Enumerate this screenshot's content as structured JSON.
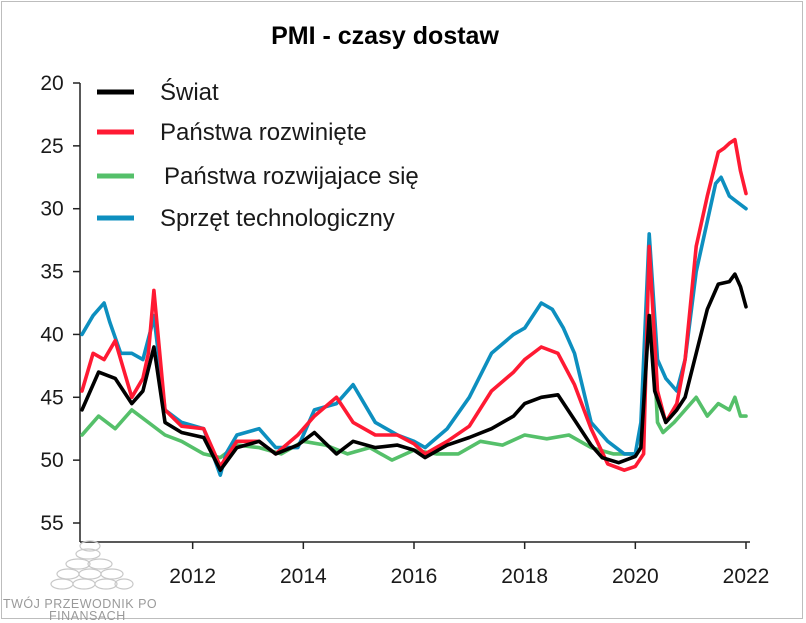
{
  "chart_data": {
    "type": "line",
    "title": "PMI - czasy dostaw",
    "xlabel": "",
    "ylabel": "",
    "x_ticks": [
      "2012",
      "2014",
      "2016",
      "2018",
      "2020",
      "2022"
    ],
    "y_ticks": [
      "20",
      "25",
      "30",
      "35",
      "40",
      "45",
      "50",
      "55"
    ],
    "ylim": [
      20,
      55
    ],
    "y_inverted": true,
    "xlim": [
      2010.0,
      2022.0
    ],
    "grid": false,
    "legend_position": "top-left",
    "series": [
      {
        "name": "Świat",
        "color": "#000000",
        "x": [
          2010.0,
          2010.3,
          2010.6,
          2010.9,
          2011.1,
          2011.3,
          2011.5,
          2011.8,
          2012.2,
          2012.5,
          2012.8,
          2013.2,
          2013.5,
          2013.9,
          2014.2,
          2014.6,
          2014.9,
          2015.3,
          2015.7,
          2016.0,
          2016.2,
          2016.6,
          2017.0,
          2017.4,
          2017.8,
          2018.0,
          2018.3,
          2018.6,
          2018.9,
          2019.2,
          2019.4,
          2019.7,
          2020.0,
          2020.1,
          2020.25,
          2020.35,
          2020.55,
          2020.75,
          2020.9,
          2021.1,
          2021.3,
          2021.5,
          2021.7,
          2021.8,
          2021.9,
          2022.0
        ],
        "values": [
          46.0,
          43.0,
          43.5,
          45.5,
          44.5,
          41.0,
          47.0,
          47.8,
          48.2,
          50.8,
          49.0,
          48.5,
          49.5,
          48.8,
          47.8,
          49.5,
          48.5,
          49.0,
          48.8,
          49.2,
          49.8,
          48.8,
          48.2,
          47.5,
          46.5,
          45.5,
          45.0,
          44.8,
          46.8,
          48.8,
          49.8,
          50.2,
          49.7,
          49.0,
          38.5,
          44.5,
          47.0,
          46.0,
          45.0,
          41.5,
          38.0,
          36.0,
          35.8,
          35.2,
          36.2,
          37.8
        ]
      },
      {
        "name": "Państwa rozwinięte",
        "color": "#ff1a33",
        "x": [
          2010.0,
          2010.2,
          2010.4,
          2010.6,
          2010.9,
          2011.1,
          2011.2,
          2011.3,
          2011.5,
          2011.8,
          2012.2,
          2012.5,
          2012.8,
          2013.2,
          2013.5,
          2013.9,
          2014.2,
          2014.6,
          2014.9,
          2015.3,
          2015.7,
          2016.0,
          2016.2,
          2016.6,
          2017.0,
          2017.4,
          2017.8,
          2018.0,
          2018.3,
          2018.6,
          2018.9,
          2019.2,
          2019.5,
          2019.8,
          2020.0,
          2020.15,
          2020.25,
          2020.4,
          2020.55,
          2020.75,
          2020.9,
          2021.1,
          2021.3,
          2021.5,
          2021.6,
          2021.7,
          2021.8,
          2021.9,
          2022.0
        ],
        "values": [
          44.5,
          41.5,
          42.0,
          40.5,
          45.0,
          43.5,
          41.5,
          36.5,
          46.0,
          47.3,
          47.5,
          50.5,
          48.5,
          48.5,
          49.5,
          48.0,
          46.5,
          45.0,
          47.0,
          48.0,
          48.0,
          48.7,
          49.5,
          48.5,
          47.3,
          44.5,
          43.0,
          42.0,
          41.0,
          41.5,
          44.0,
          47.5,
          50.3,
          50.8,
          50.5,
          49.5,
          33.0,
          44.5,
          47.0,
          45.5,
          42.0,
          33.0,
          29.0,
          25.5,
          25.2,
          24.8,
          24.5,
          27.0,
          28.8
        ]
      },
      {
        "name": "Państwa rozwijajace się",
        "color": "#55c06a",
        "x": [
          2010.0,
          2010.3,
          2010.6,
          2010.9,
          2011.2,
          2011.5,
          2011.8,
          2012.2,
          2012.5,
          2012.8,
          2013.2,
          2013.6,
          2014.0,
          2014.4,
          2014.8,
          2015.2,
          2015.6,
          2016.0,
          2016.4,
          2016.8,
          2017.2,
          2017.6,
          2018.0,
          2018.4,
          2018.8,
          2019.2,
          2019.6,
          2020.0,
          2020.1,
          2020.2,
          2020.3,
          2020.4,
          2020.5,
          2020.7,
          2020.9,
          2021.1,
          2021.3,
          2021.5,
          2021.7,
          2021.8,
          2021.9,
          2022.0
        ],
        "values": [
          48.0,
          46.5,
          47.5,
          46.0,
          47.0,
          48.0,
          48.5,
          49.5,
          49.8,
          48.8,
          49.0,
          49.5,
          48.5,
          48.8,
          49.5,
          49.0,
          50.0,
          49.2,
          49.5,
          49.5,
          48.5,
          48.8,
          48.0,
          48.3,
          48.0,
          49.0,
          49.5,
          49.5,
          49.0,
          39.0,
          38.5,
          47.0,
          47.8,
          47.0,
          46.0,
          45.0,
          46.5,
          45.5,
          46.0,
          45.0,
          46.5,
          46.5
        ]
      },
      {
        "name": "Sprzęt technologiczny",
        "color": "#0d8fbf",
        "x": [
          2010.0,
          2010.2,
          2010.4,
          2010.5,
          2010.7,
          2010.9,
          2011.1,
          2011.25,
          2011.3,
          2011.5,
          2011.8,
          2012.2,
          2012.5,
          2012.6,
          2012.8,
          2013.2,
          2013.5,
          2013.9,
          2014.2,
          2014.6,
          2014.9,
          2015.3,
          2015.7,
          2016.0,
          2016.2,
          2016.6,
          2017.0,
          2017.4,
          2017.8,
          2018.0,
          2018.3,
          2018.5,
          2018.7,
          2018.9,
          2019.2,
          2019.5,
          2019.8,
          2020.0,
          2020.1,
          2020.25,
          2020.4,
          2020.55,
          2020.75,
          2020.9,
          2021.1,
          2021.3,
          2021.45,
          2021.55,
          2021.7,
          2021.85,
          2022.0
        ],
        "values": [
          40.0,
          38.5,
          37.5,
          39.0,
          41.5,
          41.5,
          42.0,
          39.5,
          38.5,
          46.0,
          47.0,
          47.5,
          51.2,
          49.5,
          48.0,
          47.5,
          49.0,
          49.0,
          46.0,
          45.5,
          44.0,
          47.0,
          48.0,
          48.5,
          49.0,
          47.5,
          45.0,
          41.5,
          40.0,
          39.5,
          37.5,
          38.0,
          39.5,
          41.5,
          47.0,
          48.5,
          49.5,
          49.5,
          47.0,
          32.0,
          42.0,
          43.5,
          44.5,
          42.0,
          35.0,
          31.0,
          28.0,
          27.5,
          29.0,
          29.5,
          30.0
        ]
      }
    ]
  },
  "watermark": {
    "line1": "TWÓJ PRZEWODNIK PO",
    "line2": "FINANSACH"
  }
}
